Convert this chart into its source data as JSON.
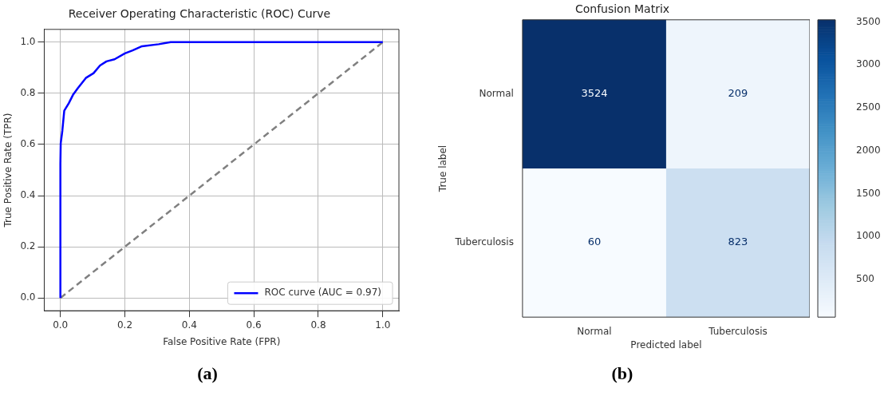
{
  "chart_data": [
    {
      "type": "line",
      "title": "Receiver Operating Characteristic (ROC) Curve",
      "xlabel": "False Positive Rate (FPR)",
      "ylabel": "True Positive Rate (TPR)",
      "series": [
        {
          "name": "ROC curve (AUC = 0.97)",
          "color": "#0000ff",
          "line_style": "solid",
          "x": [
            0,
            0,
            0.001,
            0.006,
            0.012,
            0.026,
            0.04,
            0.054,
            0.079,
            0.103,
            0.123,
            0.143,
            0.168,
            0.2,
            0.224,
            0.253,
            0.305,
            0.342,
            1
          ],
          "values": [
            0,
            0.525,
            0.604,
            0.653,
            0.732,
            0.761,
            0.796,
            0.82,
            0.86,
            0.879,
            0.909,
            0.925,
            0.933,
            0.956,
            0.968,
            0.984,
            0.992,
            1,
            1
          ]
        },
        {
          "color": "#808080",
          "line_style": "dashed",
          "x": [
            0,
            1
          ],
          "values": [
            0,
            1
          ]
        }
      ],
      "xlim": [
        -0.05,
        1.05
      ],
      "ylim": [
        -0.05,
        1.05
      ],
      "xticks": [
        {
          "value": 0,
          "label": "0.0"
        },
        0.2,
        0.4,
        0.6,
        0.8,
        {
          "value": 1,
          "label": "1.0"
        }
      ],
      "yticks": [
        {
          "value": 0,
          "label": "0.0"
        },
        0.2,
        0.4,
        0.6,
        0.8,
        {
          "value": 1,
          "label": "1.0"
        }
      ],
      "grid": true,
      "legend": "bottom right",
      "annotations": [
        "(a)"
      ]
    },
    {
      "type": "heatmap",
      "title": "Confusion Matrix",
      "xlabel": "Predicted label",
      "ylabel": "True label",
      "categories": [
        "Normal",
        "Tuberculosis"
      ],
      "y_categories": [
        "Normal",
        "Tuberculosis"
      ],
      "cells": [
        [
          3524,
          209
        ],
        [
          60,
          823
        ]
      ],
      "data_labels": true,
      "clim": [
        60,
        3524
      ],
      "cticks": [
        500,
        1000,
        1500,
        2000,
        2500,
        3000,
        3500
      ],
      "annotations": [
        "(b)"
      ]
    }
  ]
}
